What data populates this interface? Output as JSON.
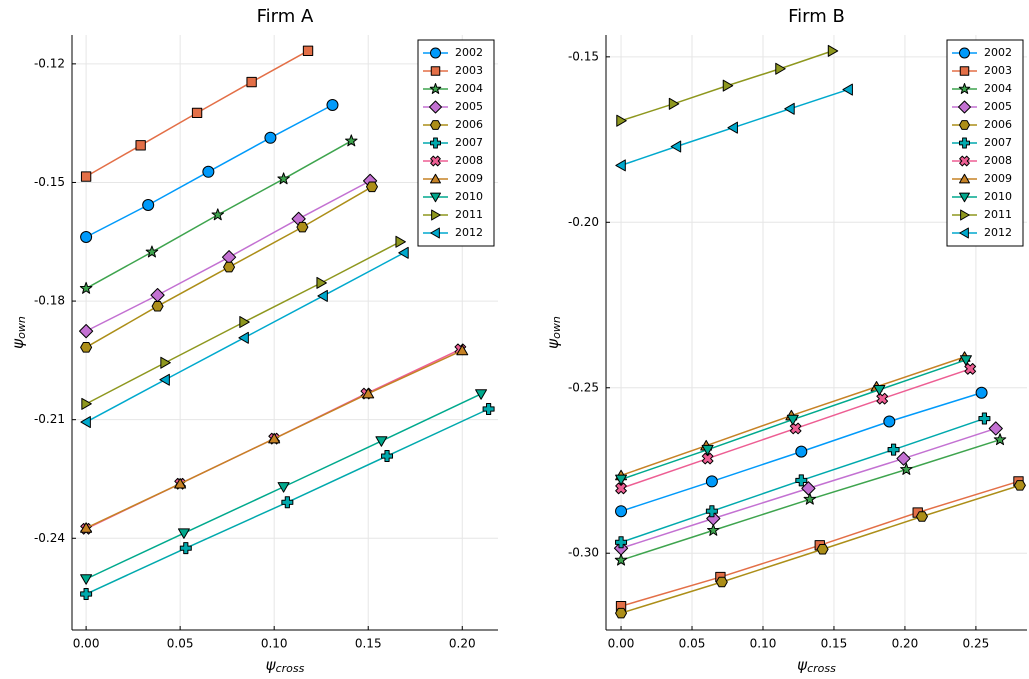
{
  "chart_data": [
    {
      "type": "line",
      "title": "Firm A",
      "xlabel": "ψ",
      "xlabel_sub": "cross",
      "ylabel": "ψ",
      "ylabel_sub": "own",
      "xlim": [
        -0.0075,
        0.219
      ],
      "ylim": [
        -0.2632,
        -0.1127
      ],
      "xticks": [
        {
          "value": 0,
          "label": "0.00"
        },
        0.05,
        {
          "value": 0.1,
          "label": "0.10"
        },
        0.15,
        {
          "value": 0.2,
          "label": "0.20"
        }
      ],
      "yticks": [
        -0.12,
        -0.15,
        -0.18,
        -0.21,
        -0.24
      ],
      "grid": true,
      "legend": "top right",
      "series": [
        {
          "name": "2002",
          "color": "#009AFA",
          "marker": "circle",
          "x": [
            0,
            0.033,
            0.065,
            0.098,
            0.131
          ],
          "values": [
            -0.1638,
            -0.1557,
            -0.1473,
            -0.1387,
            -0.1304
          ]
        },
        {
          "name": "2003",
          "color": "#E36F47",
          "marker": "square",
          "x": [
            0,
            0.029,
            0.059,
            0.088,
            0.118
          ],
          "values": [
            -0.1485,
            -0.1406,
            -0.1324,
            -0.1246,
            -0.1167
          ]
        },
        {
          "name": "2004",
          "color": "#3EA44E",
          "marker": "star",
          "x": [
            0,
            0.035,
            0.07,
            0.105,
            0.141
          ],
          "values": [
            -0.1768,
            -0.1676,
            -0.1582,
            -0.1491,
            -0.1395
          ]
        },
        {
          "name": "2005",
          "color": "#C371D2",
          "marker": "diamond",
          "x": [
            0,
            0.038,
            0.076,
            0.113,
            0.151
          ],
          "values": [
            -0.1876,
            -0.1785,
            -0.1689,
            -0.1592,
            -0.1496
          ]
        },
        {
          "name": "2006",
          "color": "#AC8E18",
          "marker": "hexagon",
          "x": [
            0,
            0.038,
            0.076,
            0.115,
            0.152
          ],
          "values": [
            -0.1917,
            -0.1813,
            -0.1714,
            -0.1613,
            -0.1511
          ]
        },
        {
          "name": "2007",
          "color": "#00A9AD",
          "marker": "cross",
          "x": [
            0,
            0.053,
            0.107,
            0.16,
            0.214
          ],
          "values": [
            -0.2541,
            -0.2425,
            -0.2309,
            -0.2192,
            -0.2073
          ]
        },
        {
          "name": "2008",
          "color": "#ED5E93",
          "marker": "xcross",
          "x": [
            0,
            0.05,
            0.1,
            0.149,
            0.199
          ],
          "values": [
            -0.2376,
            -0.2262,
            -0.2148,
            -0.2034,
            -0.1922
          ]
        },
        {
          "name": "2009",
          "color": "#C68225",
          "marker": "utriangle",
          "x": [
            0,
            0.05,
            0.1,
            0.15,
            0.2
          ],
          "values": [
            -0.2374,
            -0.2262,
            -0.2148,
            -0.2034,
            -0.1925
          ]
        },
        {
          "name": "2010",
          "color": "#00A98D",
          "marker": "dtriangle",
          "x": [
            0,
            0.052,
            0.105,
            0.157,
            0.21
          ],
          "values": [
            -0.2503,
            -0.2387,
            -0.227,
            -0.2154,
            -0.2035
          ]
        },
        {
          "name": "2011",
          "color": "#8E971E",
          "marker": "rtriangle",
          "x": [
            0,
            0.042,
            0.084,
            0.125,
            0.167
          ],
          "values": [
            -0.206,
            -0.1956,
            -0.1853,
            -0.1754,
            -0.165
          ]
        },
        {
          "name": "2012",
          "color": "#00A9CD",
          "marker": "ltriangle",
          "x": [
            0,
            0.042,
            0.084,
            0.126,
            0.169
          ],
          "values": [
            -0.2106,
            -0.1999,
            -0.1893,
            -0.1787,
            -0.1678
          ]
        }
      ]
    },
    {
      "type": "line",
      "title": "Firm B",
      "xlabel": "ψ",
      "xlabel_sub": "cross",
      "ylabel": "ψ",
      "ylabel_sub": "own",
      "xlim": [
        -0.0106,
        0.286
      ],
      "ylim": [
        -0.3232,
        -0.1434
      ],
      "xticks": [
        {
          "value": 0,
          "label": "0.00"
        },
        0.05,
        {
          "value": 0.1,
          "label": "0.10"
        },
        0.15,
        {
          "value": 0.2,
          "label": "0.20"
        },
        0.25
      ],
      "yticks": [
        {
          "value": -0.15,
          "label": "-0.15"
        },
        {
          "value": -0.2,
          "label": "-0.20"
        },
        -0.25,
        {
          "value": -0.3,
          "label": "-0.30"
        }
      ],
      "grid": true,
      "legend": "top right",
      "series": [
        {
          "name": "2002",
          "color": "#009AFA",
          "marker": "circle",
          "x": [
            0,
            0.064,
            0.127,
            0.189,
            0.254
          ],
          "values": [
            -0.2873,
            -0.2783,
            -0.2693,
            -0.2602,
            -0.2515
          ]
        },
        {
          "name": "2003",
          "color": "#E36F47",
          "marker": "square",
          "x": [
            0,
            0.07,
            0.14,
            0.209,
            0.28
          ],
          "values": [
            -0.316,
            -0.3072,
            -0.2976,
            -0.2877,
            -0.2783
          ]
        },
        {
          "name": "2004",
          "color": "#3EA44E",
          "marker": "star",
          "x": [
            0,
            0.065,
            0.133,
            0.201,
            0.267
          ],
          "values": [
            -0.3021,
            -0.2931,
            -0.2837,
            -0.2747,
            -0.2657
          ]
        },
        {
          "name": "2005",
          "color": "#C371D2",
          "marker": "diamond",
          "x": [
            0,
            0.065,
            0.132,
            0.199,
            0.264
          ],
          "values": [
            -0.2985,
            -0.2895,
            -0.2804,
            -0.2714,
            -0.2623
          ]
        },
        {
          "name": "2006",
          "color": "#AC8E18",
          "marker": "hexagon",
          "x": [
            0,
            0.071,
            0.142,
            0.212,
            0.281
          ],
          "values": [
            -0.3181,
            -0.3087,
            -0.2988,
            -0.2889,
            -0.2795
          ]
        },
        {
          "name": "2007",
          "color": "#00A9AD",
          "marker": "cross",
          "x": [
            0,
            0.064,
            0.127,
            0.192,
            0.256
          ],
          "values": [
            -0.2967,
            -0.2873,
            -0.278,
            -0.2687,
            -0.2593
          ]
        },
        {
          "name": "2008",
          "color": "#ED5E93",
          "marker": "xcross",
          "x": [
            0,
            0.061,
            0.123,
            0.184,
            0.246
          ],
          "values": [
            -0.2804,
            -0.2714,
            -0.2623,
            -0.2533,
            -0.2443
          ]
        },
        {
          "name": "2009",
          "color": "#C68225",
          "marker": "utriangle",
          "x": [
            0,
            0.06,
            0.12,
            0.18,
            0.242
          ],
          "values": [
            -0.2765,
            -0.2675,
            -0.2584,
            -0.2497,
            -0.2407
          ]
        },
        {
          "name": "2010",
          "color": "#00A98D",
          "marker": "dtriangle",
          "x": [
            0,
            0.061,
            0.121,
            0.182,
            0.243
          ],
          "values": [
            -0.2777,
            -0.2687,
            -0.2596,
            -0.2506,
            -0.2416
          ]
        },
        {
          "name": "2011",
          "color": "#8E971E",
          "marker": "rtriangle",
          "x": [
            0,
            0.037,
            0.075,
            0.112,
            0.149
          ],
          "values": [
            -0.1693,
            -0.1642,
            -0.1587,
            -0.1536,
            -0.1482
          ]
        },
        {
          "name": "2012",
          "color": "#00A9CD",
          "marker": "ltriangle",
          "x": [
            0,
            0.039,
            0.079,
            0.119,
            0.16
          ],
          "values": [
            -0.1828,
            -0.1771,
            -0.1714,
            -0.1657,
            -0.1599
          ]
        }
      ]
    }
  ]
}
